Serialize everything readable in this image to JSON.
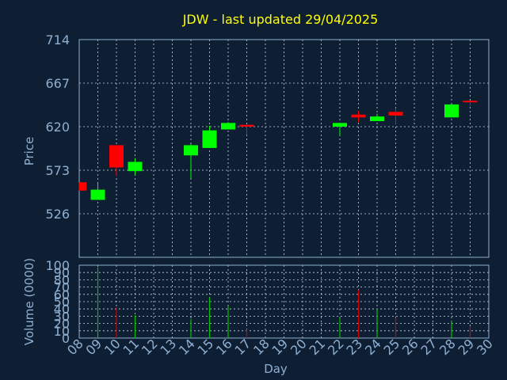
{
  "colors": {
    "background": "#0f1f33",
    "frame": "#8fb0d2",
    "grid": "#c8d6e8",
    "title": "#ffff00",
    "axis_text": "#8fb0d2",
    "label_text": "#8fb0d2",
    "up": "#00ff00",
    "down": "#ff0000",
    "volume_up": "#00c000",
    "volume_down": "#d00000"
  },
  "chart_data": [
    {
      "type": "candlestick",
      "title": "JDW - last updated 29/04/2025",
      "ylabel": "Price",
      "xlabel": "",
      "ylim": [
        479,
        714
      ],
      "yticks": [
        "526",
        "573",
        "620",
        "667",
        "714"
      ],
      "grid": true,
      "x": [
        "08",
        "09",
        "10",
        "11",
        "14",
        "15",
        "16",
        "17",
        "22",
        "23",
        "24",
        "25",
        "28",
        "29"
      ],
      "candles": [
        {
          "day": "08",
          "open": 560,
          "close": 551,
          "high": 560,
          "low": 551
        },
        {
          "day": "09",
          "open": 541,
          "close": 552,
          "high": 559,
          "low": 541
        },
        {
          "day": "10",
          "open": 600,
          "close": 576,
          "high": 600,
          "low": 567
        },
        {
          "day": "11",
          "open": 572,
          "close": 582,
          "high": 586,
          "low": 568
        },
        {
          "day": "14",
          "open": 589,
          "close": 600,
          "high": 601,
          "low": 564
        },
        {
          "day": "15",
          "open": 597,
          "close": 616,
          "high": 621,
          "low": 597
        },
        {
          "day": "16",
          "open": 617,
          "close": 624,
          "high": 625,
          "low": 617
        },
        {
          "day": "17",
          "open": 622,
          "close": 620,
          "high": 622,
          "low": 611
        },
        {
          "day": "22",
          "open": 620,
          "close": 624,
          "high": 624,
          "low": 610
        },
        {
          "day": "23",
          "open": 633,
          "close": 630,
          "high": 637,
          "low": 625
        },
        {
          "day": "24",
          "open": 626,
          "close": 631,
          "high": 634,
          "low": 626
        },
        {
          "day": "25",
          "open": 636,
          "close": 632,
          "high": 640,
          "low": 623
        },
        {
          "day": "28",
          "open": 630,
          "close": 644,
          "high": 644,
          "low": 630
        },
        {
          "day": "29",
          "open": 648,
          "close": 647,
          "high": 648,
          "low": 642
        }
      ]
    },
    {
      "type": "bar",
      "ylabel": "Volume (0000)",
      "xlabel": "Day",
      "ylim": [
        0,
        100
      ],
      "yticks": [
        "0",
        "10",
        "20",
        "30",
        "40",
        "50",
        "60",
        "70",
        "80",
        "90",
        "100"
      ],
      "grid": true,
      "categories": [
        "08",
        "09",
        "10",
        "11",
        "12",
        "13",
        "14",
        "15",
        "16",
        "17",
        "18",
        "19",
        "20",
        "21",
        "22",
        "23",
        "24",
        "25",
        "26",
        "27",
        "28",
        "29",
        "30"
      ],
      "values": [
        {
          "day": "09",
          "value": 97,
          "direction": "up"
        },
        {
          "day": "10",
          "value": 42,
          "direction": "down"
        },
        {
          "day": "11",
          "value": 31,
          "direction": "up"
        },
        {
          "day": "14",
          "value": 26,
          "direction": "up"
        },
        {
          "day": "15",
          "value": 56,
          "direction": "up"
        },
        {
          "day": "16",
          "value": 44,
          "direction": "up"
        },
        {
          "day": "17",
          "value": 12,
          "direction": "down"
        },
        {
          "day": "22",
          "value": 28,
          "direction": "up"
        },
        {
          "day": "23",
          "value": 66,
          "direction": "down"
        },
        {
          "day": "24",
          "value": 40,
          "direction": "up"
        },
        {
          "day": "25",
          "value": 28,
          "direction": "down"
        },
        {
          "day": "28",
          "value": 23,
          "direction": "up"
        },
        {
          "day": "29",
          "value": 16,
          "direction": "down"
        }
      ]
    }
  ]
}
